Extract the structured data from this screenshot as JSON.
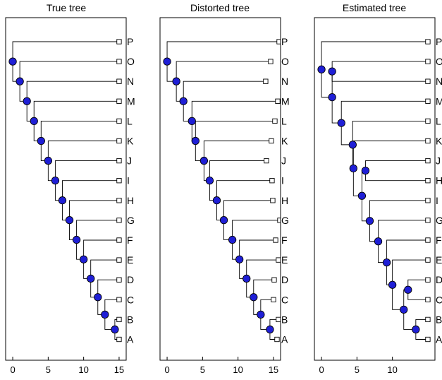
{
  "colors": {
    "node_fill": "#1f1fd6",
    "leaf_fill": "#ffffff",
    "line": "#000000"
  },
  "chart_data": [
    {
      "type": "dendrogram",
      "title": "True tree",
      "xlabel": "",
      "ylabel": "",
      "xlim": [
        -1,
        16
      ],
      "xticks": [
        0,
        5,
        10,
        15
      ],
      "grid": false,
      "leaves_top_to_bottom": [
        "P",
        "O",
        "N",
        "M",
        "L",
        "K",
        "J",
        "I",
        "H",
        "G",
        "F",
        "E",
        "D",
        "C",
        "B",
        "A"
      ],
      "leaf_x": {
        "P": 15,
        "O": 15,
        "N": 15,
        "M": 15,
        "L": 15,
        "K": 15,
        "J": 15,
        "I": 15,
        "H": 15,
        "G": 15,
        "F": 15,
        "E": 15,
        "D": 15,
        "C": 15,
        "B": 15,
        "A": 15
      },
      "internal_nodes": [
        {
          "id": "n1",
          "x": 14.4,
          "children": [
            "B",
            "A"
          ]
        },
        {
          "id": "n2",
          "x": 13,
          "children": [
            "C",
            "n1"
          ]
        },
        {
          "id": "n3",
          "x": 12,
          "children": [
            "D",
            "n2"
          ]
        },
        {
          "id": "n4",
          "x": 11,
          "children": [
            "E",
            "n3"
          ]
        },
        {
          "id": "n5",
          "x": 10,
          "children": [
            "F",
            "n4"
          ]
        },
        {
          "id": "n6",
          "x": 9,
          "children": [
            "G",
            "n5"
          ]
        },
        {
          "id": "n7",
          "x": 8,
          "children": [
            "H",
            "n6"
          ]
        },
        {
          "id": "n8",
          "x": 7,
          "children": [
            "I",
            "n7"
          ]
        },
        {
          "id": "n9",
          "x": 6,
          "children": [
            "J",
            "n8"
          ]
        },
        {
          "id": "n10",
          "x": 5,
          "children": [
            "K",
            "n9"
          ]
        },
        {
          "id": "n11",
          "x": 4,
          "children": [
            "L",
            "n10"
          ]
        },
        {
          "id": "n12",
          "x": 3,
          "children": [
            "M",
            "n11"
          ]
        },
        {
          "id": "n13",
          "x": 2,
          "children": [
            "N",
            "n12"
          ]
        },
        {
          "id": "n14",
          "x": 1,
          "children": [
            "O",
            "n13"
          ]
        },
        {
          "id": "n15",
          "x": 0,
          "children": [
            "P",
            "n14"
          ]
        }
      ]
    },
    {
      "type": "dendrogram",
      "title": "Distorted tree",
      "xlabel": "",
      "ylabel": "",
      "xlim": [
        -1,
        16
      ],
      "xticks": [
        0,
        5,
        10,
        15
      ],
      "grid": false,
      "leaves_top_to_bottom": [
        "P",
        "O",
        "N",
        "M",
        "L",
        "K",
        "J",
        "I",
        "H",
        "G",
        "F",
        "E",
        "D",
        "C",
        "B",
        "A"
      ],
      "leaf_x": {
        "P": 15.8,
        "O": 14.6,
        "N": 13.9,
        "M": 15.6,
        "L": 15.2,
        "K": 14.7,
        "J": 14,
        "I": 14.8,
        "H": 14.9,
        "G": 15.9,
        "F": 15.3,
        "E": 15.7,
        "D": 15.1,
        "C": 15,
        "B": 15.7,
        "A": 15.5
      },
      "internal_nodes": [
        {
          "id": "n1",
          "x": 14.5,
          "children": [
            "B",
            "A"
          ]
        },
        {
          "id": "n2",
          "x": 13.2,
          "children": [
            "C",
            "n1"
          ]
        },
        {
          "id": "n3",
          "x": 12.2,
          "children": [
            "D",
            "n2"
          ]
        },
        {
          "id": "n4",
          "x": 11.2,
          "children": [
            "E",
            "n3"
          ]
        },
        {
          "id": "n5",
          "x": 10.2,
          "children": [
            "F",
            "n4"
          ]
        },
        {
          "id": "n6",
          "x": 9.2,
          "children": [
            "G",
            "n5"
          ]
        },
        {
          "id": "n7",
          "x": 8,
          "children": [
            "H",
            "n6"
          ]
        },
        {
          "id": "n8",
          "x": 7,
          "children": [
            "I",
            "n7"
          ]
        },
        {
          "id": "n9",
          "x": 6,
          "children": [
            "J",
            "n8"
          ]
        },
        {
          "id": "n10",
          "x": 5.2,
          "children": [
            "K",
            "n9"
          ]
        },
        {
          "id": "n11",
          "x": 4,
          "children": [
            "L",
            "n10"
          ]
        },
        {
          "id": "n12",
          "x": 3.5,
          "children": [
            "M",
            "n11"
          ]
        },
        {
          "id": "n13",
          "x": 2.3,
          "children": [
            "N",
            "n12"
          ]
        },
        {
          "id": "n14",
          "x": 1.3,
          "children": [
            "O",
            "n13"
          ]
        },
        {
          "id": "n15",
          "x": 0,
          "children": [
            "P",
            "n14"
          ]
        }
      ]
    },
    {
      "type": "dendrogram",
      "title": "Estimated tree",
      "xlabel": "",
      "ylabel": "",
      "xlim": [
        -1,
        16
      ],
      "xticks": [
        0,
        5,
        10
      ],
      "grid": false,
      "leaves_top_to_bottom": [
        "P",
        "O",
        "N",
        "M",
        "L",
        "K",
        "J",
        "H",
        "I",
        "G",
        "F",
        "E",
        "D",
        "C",
        "B",
        "A"
      ],
      "leaf_x": {
        "P": 15,
        "O": 15,
        "N": 15,
        "M": 15,
        "L": 15,
        "K": 15,
        "J": 15,
        "H": 15,
        "I": 15,
        "G": 15,
        "F": 15,
        "E": 15,
        "D": 15,
        "C": 15,
        "B": 15,
        "A": 15
      },
      "internal_nodes": [
        {
          "id": "n1",
          "x": 13.3,
          "children": [
            "B",
            "A"
          ]
        },
        {
          "id": "n2",
          "x": 12.2,
          "children": [
            "D",
            "C"
          ]
        },
        {
          "id": "n3",
          "x": 11.6,
          "children": [
            "n2",
            "n1"
          ]
        },
        {
          "id": "n4",
          "x": 10,
          "children": [
            "E",
            "n3"
          ]
        },
        {
          "id": "n5",
          "x": 9.2,
          "children": [
            "F",
            "n4"
          ]
        },
        {
          "id": "n6",
          "x": 8,
          "children": [
            "G",
            "n5"
          ]
        },
        {
          "id": "n7",
          "x": 6.8,
          "children": [
            "I",
            "n6"
          ]
        },
        {
          "id": "n8",
          "x": 6.2,
          "children": [
            "J",
            "H"
          ]
        },
        {
          "id": "n9",
          "x": 5.7,
          "children": [
            "n8",
            "n7"
          ]
        },
        {
          "id": "n10",
          "x": 4.5,
          "children": [
            "K",
            "n9"
          ]
        },
        {
          "id": "n11",
          "x": 4.4,
          "children": [
            "L",
            "n10"
          ]
        },
        {
          "id": "n12",
          "x": 2.8,
          "children": [
            "M",
            "n11"
          ]
        },
        {
          "id": "n13",
          "x": 1.5,
          "children": [
            "O",
            "N"
          ]
        },
        {
          "id": "n14",
          "x": 1.5,
          "children": [
            "n13",
            "n12"
          ]
        },
        {
          "id": "n15",
          "x": 0,
          "children": [
            "P",
            "n14"
          ]
        }
      ]
    }
  ]
}
